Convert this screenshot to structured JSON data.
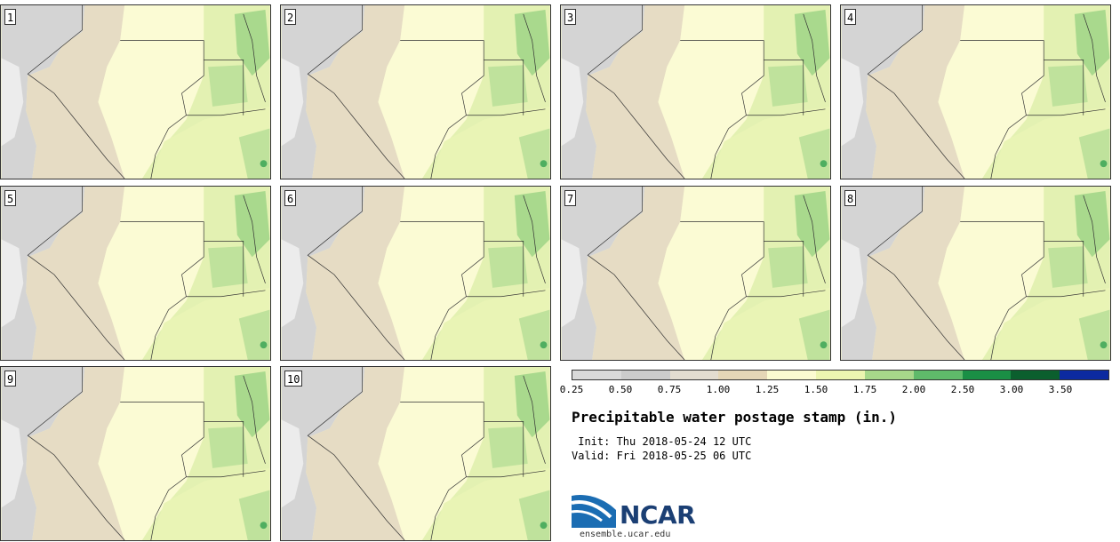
{
  "panels": [
    {
      "label": "1"
    },
    {
      "label": "2"
    },
    {
      "label": "3"
    },
    {
      "label": "4"
    },
    {
      "label": "5"
    },
    {
      "label": "6"
    },
    {
      "label": "7"
    },
    {
      "label": "8"
    },
    {
      "label": "9"
    },
    {
      "label": "10"
    }
  ],
  "legend": {
    "ticks": [
      "0.25",
      "0.50",
      "0.75",
      "1.00",
      "1.25",
      "1.50",
      "1.75",
      "2.00",
      "2.50",
      "3.00",
      "3.50"
    ],
    "colors": [
      "#d9d9d9",
      "#cbcbcb",
      "#e3dcd0",
      "#e5d6b6",
      "#fbfbd1",
      "#ecf5b0",
      "#a7d88a",
      "#5fba6a",
      "#1a8f45",
      "#0b5f2e",
      "#0c2aa0"
    ]
  },
  "title": "Precipitable water postage stamp (in.)",
  "init": " Init: Thu 2018-05-24 12 UTC",
  "valid": "Valid: Fri 2018-05-25 06 UTC",
  "logo": {
    "text": "NCAR",
    "url": "ensemble.ucar.edu"
  }
}
